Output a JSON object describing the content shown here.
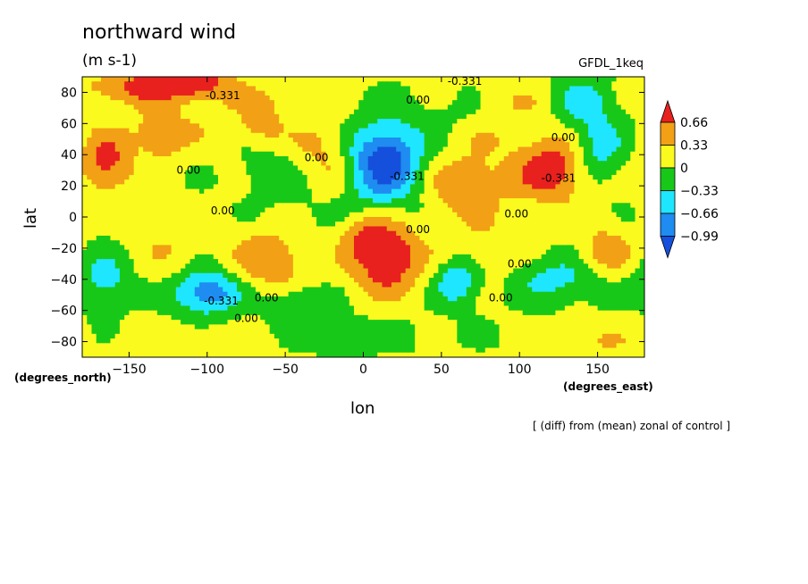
{
  "header": {
    "title": "northward wind",
    "units": "(m s-1)",
    "model": "GFDL_1keq",
    "note": "[ (diff) from (mean) zonal of control ]"
  },
  "chart_data": {
    "type": "heatmap",
    "title": "northward wind",
    "subtitle": "(m s-1)",
    "xlabel": "lon",
    "ylabel": "lat",
    "xunits": "(degrees_east)",
    "yunits": "(degrees_north)",
    "xlim": [
      -180,
      180
    ],
    "ylim": [
      -90,
      90
    ],
    "xticks": [
      -150,
      -100,
      -50,
      0,
      50,
      100,
      150
    ],
    "yticks": [
      -80,
      -60,
      -40,
      -20,
      0,
      20,
      40,
      60,
      80
    ],
    "colorbar": {
      "labels": [
        "0.66",
        "0.33",
        "0",
        "−0.33",
        "−0.66",
        "−0.99"
      ],
      "levels": [
        0.66,
        0.33,
        0,
        -0.33,
        -0.66,
        -0.99
      ],
      "colors": [
        "#e8201e",
        "#f2a015",
        "#fafa1e",
        "#18c818",
        "#1ee6ff",
        "#1e8cf0",
        "#1450dc"
      ]
    },
    "contour_labels": [
      {
        "text": "-0.331",
        "lon": -90,
        "lat": 78
      },
      {
        "text": "-0.331",
        "lon": 65,
        "lat": 87
      },
      {
        "text": "0.00",
        "lon": 35,
        "lat": 75
      },
      {
        "text": "0.00",
        "lon": 128,
        "lat": 51
      },
      {
        "text": "0.00",
        "lon": -112,
        "lat": 30
      },
      {
        "text": "0.00",
        "lon": -30,
        "lat": 38
      },
      {
        "text": "-0.331",
        "lon": 28,
        "lat": 26
      },
      {
        "text": "-0.331",
        "lon": 125,
        "lat": 25
      },
      {
        "text": "0.00",
        "lon": -90,
        "lat": 4
      },
      {
        "text": "0.00",
        "lon": 98,
        "lat": 2
      },
      {
        "text": "0.00",
        "lon": 35,
        "lat": -8
      },
      {
        "text": "0.00",
        "lon": 100,
        "lat": -30
      },
      {
        "text": "0.00",
        "lon": 88,
        "lat": -52
      },
      {
        "text": "-0.331",
        "lon": -91,
        "lat": -54
      },
      {
        "text": "0.00",
        "lon": -62,
        "lat": -52
      },
      {
        "text": "0.00",
        "lon": -75,
        "lat": -65
      }
    ],
    "features": [
      {
        "lon": -5,
        "lat": 0,
        "sx": 180,
        "sy": 90,
        "v": 0.06
      },
      {
        "lon": 15,
        "lat": 38,
        "sx": 15,
        "sy": 16,
        "v": -1.05
      },
      {
        "lon": 10,
        "lat": 20,
        "sx": 22,
        "sy": 22,
        "v": -0.35
      },
      {
        "lon": 15,
        "lat": -25,
        "sx": 16,
        "sy": 17,
        "v": 1.0
      },
      {
        "lon": 0,
        "lat": -10,
        "sx": 10,
        "sy": 10,
        "v": 0.45
      },
      {
        "lon": -100,
        "lat": -48,
        "sx": 15,
        "sy": 10,
        "v": -1.0
      },
      {
        "lon": -60,
        "lat": -28,
        "sx": 18,
        "sy": 14,
        "v": 0.55
      },
      {
        "lon": -125,
        "lat": -20,
        "sx": 15,
        "sy": 16,
        "v": 0.25
      },
      {
        "lon": -165,
        "lat": 35,
        "sx": 12,
        "sy": 14,
        "v": 0.75
      },
      {
        "lon": -130,
        "lat": 50,
        "sx": 10,
        "sy": 10,
        "v": 0.45
      },
      {
        "lon": -115,
        "lat": 87,
        "sx": 22,
        "sy": 7,
        "v": 0.95
      },
      {
        "lon": -150,
        "lat": 82,
        "sx": 25,
        "sy": 7,
        "v": 0.5
      },
      {
        "lon": -65,
        "lat": 60,
        "sx": 10,
        "sy": 9,
        "v": 0.45
      },
      {
        "lon": -30,
        "lat": 47,
        "sx": 13,
        "sy": 12,
        "v": 0.3
      },
      {
        "lon": -60,
        "lat": 28,
        "sx": 12,
        "sy": 10,
        "v": -0.3
      },
      {
        "lon": -30,
        "lat": 5,
        "sx": 25,
        "sy": 12,
        "v": -0.12
      },
      {
        "lon": 60,
        "lat": 65,
        "sx": 20,
        "sy": 12,
        "v": -0.2
      },
      {
        "lon": 65,
        "lat": 20,
        "sx": 18,
        "sy": 14,
        "v": 0.6
      },
      {
        "lon": 120,
        "lat": 30,
        "sx": 16,
        "sy": 14,
        "v": 0.9
      },
      {
        "lon": 150,
        "lat": 45,
        "sx": 12,
        "sy": 15,
        "v": -0.55
      },
      {
        "lon": 140,
        "lat": 75,
        "sx": 14,
        "sy": 10,
        "v": -0.55
      },
      {
        "lon": 100,
        "lat": 75,
        "sx": 25,
        "sy": 8,
        "v": 0.25
      },
      {
        "lon": 155,
        "lat": -22,
        "sx": 12,
        "sy": 12,
        "v": 0.5
      },
      {
        "lon": 125,
        "lat": -40,
        "sx": 20,
        "sy": 10,
        "v": -0.5
      },
      {
        "lon": 60,
        "lat": -42,
        "sx": 10,
        "sy": 10,
        "v": -0.7
      },
      {
        "lon": 80,
        "lat": -20,
        "sx": 14,
        "sy": 14,
        "v": 0.25
      },
      {
        "lon": -165,
        "lat": -40,
        "sx": 12,
        "sy": 12,
        "v": -0.5
      },
      {
        "lon": -20,
        "lat": -75,
        "sx": 40,
        "sy": 9,
        "v": -0.2
      },
      {
        "lon": 150,
        "lat": -80,
        "sx": 18,
        "sy": 8,
        "v": 0.3
      },
      {
        "lon": -100,
        "lat": -80,
        "sx": 35,
        "sy": 8,
        "v": 0.3
      },
      {
        "lon": -40,
        "lat": -55,
        "sx": 14,
        "sy": 8,
        "v": -0.45
      },
      {
        "lon": -20,
        "lat": 25,
        "sx": 10,
        "sy": 15,
        "v": 0.3
      },
      {
        "lon": -120,
        "lat": 60,
        "sx": 25,
        "sy": 12,
        "v": 0.25
      },
      {
        "lon": 80,
        "lat": 55,
        "sx": 20,
        "sy": 10,
        "v": 0.25
      },
      {
        "lon": -70,
        "lat": 75,
        "sx": 20,
        "sy": 6,
        "v": 0.25
      }
    ]
  }
}
